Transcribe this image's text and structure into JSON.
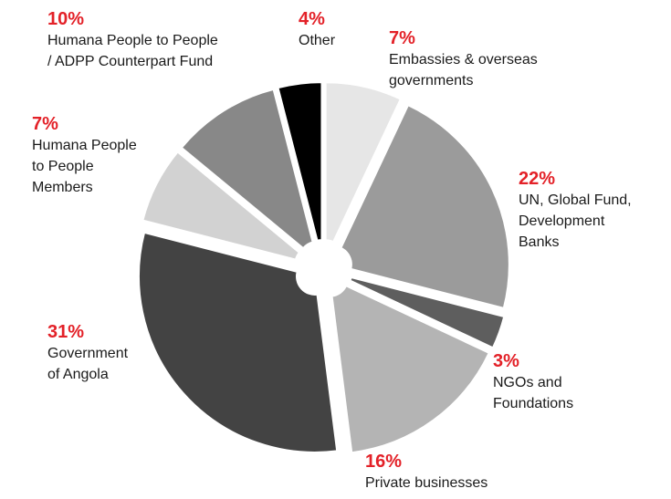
{
  "chart_data": {
    "type": "pie",
    "style": "exploded donut",
    "start": "top, clockwise",
    "colors": {
      "accent": "#e32128",
      "background": "#ffffff"
    },
    "slices": [
      {
        "percent": "7%",
        "label": "Embassies & overseas\ngovernments",
        "value": 7,
        "color": "#e6e6e6"
      },
      {
        "percent": "22%",
        "label": "UN, Global Fund,\nDevelopment\nBanks",
        "value": 22,
        "color": "#9b9b9b"
      },
      {
        "percent": "3%",
        "label": "NGOs and\nFoundations",
        "value": 3,
        "color": "#5e5e5e"
      },
      {
        "percent": "16%",
        "label": "Private businesses",
        "value": 16,
        "color": "#b4b4b4"
      },
      {
        "percent": "31%",
        "label": "Government\nof Angola",
        "value": 31,
        "color": "#434343"
      },
      {
        "percent": "7%",
        "label": "Humana People\nto People\nMembers",
        "value": 7,
        "color": "#d2d2d2"
      },
      {
        "percent": "10%",
        "label": "Humana People to People\n/ ADPP Counterpart Fund",
        "value": 10,
        "color": "#888888"
      },
      {
        "percent": "4%",
        "label": "Other",
        "value": 4,
        "color": "#000000"
      }
    ]
  }
}
